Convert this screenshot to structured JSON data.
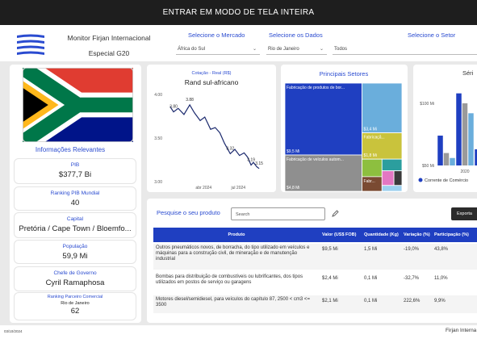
{
  "top_bar": {
    "label": "ENTRAR EM MODO DE TELA INTEIRA"
  },
  "header": {
    "title": "Monitor Firjan Internacional",
    "subtitle": "Especial G20"
  },
  "filters": [
    {
      "label": "Selecione o Mercado",
      "value": "África do Sul"
    },
    {
      "label": "Selecione os Dados",
      "value": "Rio de Janeiro"
    },
    {
      "label": "Selecione o Setor",
      "value": "Todos"
    }
  ],
  "info": {
    "title": "Informações Relevantes",
    "cards": [
      {
        "label": "PIB",
        "value": "$377,7 Bi"
      },
      {
        "label": "Ranking PIB Mundial",
        "value": 40
      },
      {
        "label": "Capital",
        "value": "Pretória / Cape Town / Bloemfo..."
      },
      {
        "label": "População",
        "value": "59,9 Mi"
      },
      {
        "label": "Chefe de Governo",
        "value": "Cyril Ramaphosa"
      },
      {
        "label": "Ranking Parceiro Comercial",
        "sublabel": "Rio de Janeiro",
        "value": 62
      }
    ]
  },
  "chart_data": [
    {
      "type": "line",
      "subtitle": "Cotação - Real (R$)",
      "title": "Rand sul-africano",
      "color": "#1c2a6e",
      "x": [
        1.1,
        1.4,
        1.8,
        2.3,
        2.8,
        3.2,
        3.7,
        4.1,
        4.6,
        5.0,
        5.4,
        5.8,
        6.3,
        6.7,
        7.1,
        7.5,
        7.8,
        8.1,
        8.3,
        8.6,
        8.8
      ],
      "values": [
        3.86,
        3.8,
        3.84,
        3.77,
        3.88,
        3.79,
        3.7,
        3.74,
        3.6,
        3.62,
        3.56,
        3.44,
        3.32,
        3.37,
        3.3,
        3.33,
        3.28,
        3.19,
        3.22,
        3.17,
        3.15
      ],
      "value_labels": [
        null,
        "3.80",
        null,
        null,
        "3.88",
        null,
        null,
        null,
        null,
        null,
        null,
        null,
        "3.32",
        null,
        null,
        null,
        null,
        "3.19",
        null,
        null,
        "3.15"
      ],
      "xlim": [
        0.7,
        9.7
      ],
      "xticks": [
        {
          "value": 4,
          "label": "abr 2024"
        },
        {
          "value": 7,
          "label": "jul 2024"
        }
      ],
      "ylim": [
        2.95,
        4.06
      ],
      "yticks": [
        {
          "value": 4,
          "label": "4.00"
        },
        {
          "value": 3.5,
          "label": "3.50"
        },
        {
          "value": 3,
          "label": "3.00"
        }
      ]
    },
    {
      "type": "treemap",
      "title": "Principais Setores",
      "labels": [
        "Fabricação de produtos de bor...",
        "Fabricação de veículos autom...",
        null,
        "Fabricaçã...",
        null,
        "Fabr...",
        null,
        null,
        null,
        null
      ],
      "values": [
        9.5,
        4.8,
        3.4,
        1.8,
        0.6,
        0.5,
        0.4,
        0.3,
        0.2,
        0.2
      ],
      "value_labels": [
        "$9,5 Mi",
        "$4,8 Mi",
        "$3,4 Mi",
        "$1,8 Mi",
        null,
        null,
        null,
        null,
        null,
        null
      ],
      "colors": [
        "#1f3fc1",
        "#8f8f8f",
        "#6aaedc",
        "#c9c33c",
        "#8dbf3f",
        "#7a4a32",
        "#2b9e9e",
        "#e377c2",
        "#3a3a3a",
        "#9cd0ee"
      ]
    },
    {
      "type": "bar",
      "title": "Séri",
      "categories": [
        null,
        "2020",
        null
      ],
      "series": [
        {
          "name": "Corrente de Comércio",
          "color": "#1f3fc1",
          "values": [
            74,
            108,
            63
          ]
        },
        {
          "name": null,
          "color": "#9a9a9a",
          "values": [
            60,
            100,
            null
          ]
        },
        {
          "name": null,
          "color": "#6aaedc",
          "values": [
            56,
            92,
            null
          ]
        }
      ],
      "ylim": [
        50,
        112
      ],
      "yticks": [
        {
          "value": 100,
          "label": "$100 Mi"
        },
        {
          "value": 50,
          "label": "$50 Mi"
        }
      ]
    }
  ],
  "table": {
    "search_label": "Pesquise o seu produto",
    "search_placeholder": "Search",
    "export_button": "Exporta",
    "columns": [
      "Produto",
      "Valor (US$ FOB)",
      "Quantidade (Kg)",
      "Variação (%)",
      "Participação (%)"
    ],
    "rows": [
      [
        "Outros pneumáticos novos, de borracha, do tipo utilizado em veículos e máquinas para a construção civil, de mineração e de manutenção industrial",
        "$9,5 Mi",
        "1,5 Mi",
        "-19,0%",
        "43,8%"
      ],
      [
        "Bombas para distribuição de combustíveis ou lubrificantes, dos tipos utilizados em postos de serviço ou garagens",
        "$2,4 Mi",
        "0,1 Mi",
        "-32,7%",
        "11,0%"
      ],
      [
        "Motores diesel/semidiesel, para veículos do capítulo 87, 2500 < cm3 <= 3500",
        "$2,1 Mi",
        "0,1 Mi",
        "222,6%",
        "9,9%"
      ]
    ]
  },
  "footer": {
    "date": "03/10/2024",
    "brand": "Firjan Interna"
  }
}
